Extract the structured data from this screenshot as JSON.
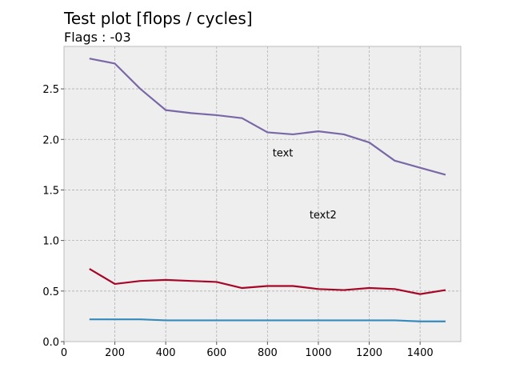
{
  "chart_data": {
    "type": "line",
    "title": "Test plot [flops / cycles]",
    "subtitle": "Flags : -03",
    "xlabel": "",
    "ylabel": "",
    "xlim": [
      0,
      1560
    ],
    "ylim": [
      0,
      2.92
    ],
    "grid": true,
    "background": "#eeeeee",
    "xticks": [
      0,
      200,
      400,
      600,
      800,
      1000,
      1200,
      1400
    ],
    "xtick_labels": [
      "0",
      "200",
      "400",
      "600",
      "800",
      "1000",
      "1200",
      "1400"
    ],
    "yticks": [
      0.0,
      0.5,
      1.0,
      1.5,
      2.0,
      2.5
    ],
    "ytick_labels": [
      "0.0",
      "0.5",
      "1.0",
      "1.5",
      "2.0",
      "2.5"
    ],
    "x": [
      100,
      200,
      300,
      400,
      500,
      600,
      700,
      800,
      900,
      1000,
      1100,
      1200,
      1300,
      1400,
      1500
    ],
    "series": [
      {
        "color": "#7a68a6",
        "values": [
          2.8,
          2.75,
          2.5,
          2.29,
          2.26,
          2.24,
          2.21,
          2.07,
          2.05,
          2.08,
          2.05,
          1.97,
          1.79,
          1.72,
          1.65
        ]
      },
      {
        "color": "#a60628",
        "values": [
          0.72,
          0.57,
          0.6,
          0.61,
          0.6,
          0.59,
          0.53,
          0.55,
          0.55,
          0.52,
          0.51,
          0.53,
          0.52,
          0.47,
          0.51
        ]
      },
      {
        "color": "#348abd",
        "values": [
          0.22,
          0.22,
          0.22,
          0.21,
          0.21,
          0.21,
          0.21,
          0.21,
          0.21,
          0.21,
          0.21,
          0.21,
          0.21,
          0.2,
          0.2
        ]
      }
    ],
    "annotations": [
      {
        "text": "text",
        "x": 820,
        "y": 1.83
      },
      {
        "text": "text2",
        "x": 965,
        "y": 1.22
      }
    ]
  }
}
